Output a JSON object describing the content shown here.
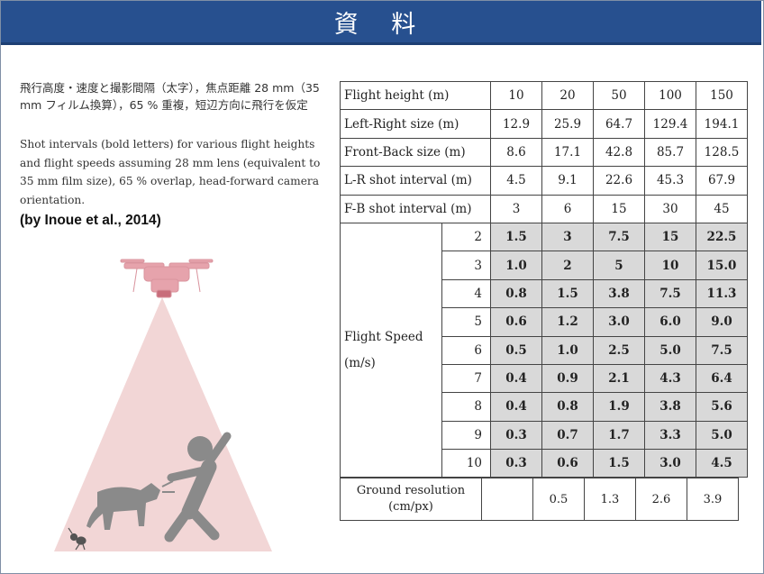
{
  "slide": {
    "title": "資 料",
    "caption_jp": "飛行高度・速度と撮影間隔（太字），焦点距離 28 mm（35 mm フィルム換算），65 % 重複，短辺方向に飛行を仮定",
    "caption_en": "Shot intervals (bold letters) for various flight heights and flight speeds assuming 28 mm lens (equivalent to 35 mm film size), 65 % overlap, head-forward camera orientation.",
    "citation": "(by Inoue et al., 2014)"
  },
  "table": {
    "header_rows": [
      {
        "label": "Flight height (m)",
        "values": [
          "10",
          "20",
          "50",
          "100",
          "150"
        ]
      },
      {
        "label": "Left-Right size (m)",
        "values": [
          "12.9",
          "25.9",
          "64.7",
          "129.4",
          "194.1"
        ]
      },
      {
        "label": "Front-Back size (m)",
        "values": [
          "8.6",
          "17.1",
          "42.8",
          "85.7",
          "128.5"
        ]
      },
      {
        "label": "L-R shot interval (m)",
        "values": [
          "4.5",
          "9.1",
          "22.6",
          "45.3",
          "67.9"
        ]
      },
      {
        "label": "F-B shot interval (m)",
        "values": [
          "3",
          "6",
          "15",
          "30",
          "45"
        ]
      }
    ],
    "speed_label_line1": "Flight Speed",
    "speed_label_line2": "(m/s)",
    "speed_rows": [
      {
        "speed": "2",
        "values": [
          "1.5",
          "3",
          "7.5",
          "15",
          "22.5"
        ]
      },
      {
        "speed": "3",
        "values": [
          "1.0",
          "2",
          "5",
          "10",
          "15.0"
        ]
      },
      {
        "speed": "4",
        "values": [
          "0.8",
          "1.5",
          "3.8",
          "7.5",
          "11.3"
        ]
      },
      {
        "speed": "5",
        "values": [
          "0.6",
          "1.2",
          "3.0",
          "6.0",
          "9.0"
        ]
      },
      {
        "speed": "6",
        "values": [
          "0.5",
          "1.0",
          "2.5",
          "5.0",
          "7.5"
        ]
      },
      {
        "speed": "7",
        "values": [
          "0.4",
          "0.9",
          "2.1",
          "4.3",
          "6.4"
        ]
      },
      {
        "speed": "8",
        "values": [
          "0.4",
          "0.8",
          "1.9",
          "3.8",
          "5.6"
        ]
      },
      {
        "speed": "9",
        "values": [
          "0.3",
          "0.7",
          "1.7",
          "3.3",
          "5.0"
        ]
      },
      {
        "speed": "10",
        "values": [
          "0.3",
          "0.6",
          "1.5",
          "3.0",
          "4.5"
        ]
      }
    ]
  },
  "ground_resolution": {
    "label_line1": "Ground resolution",
    "label_line2": "(cm/px)",
    "values": [
      "",
      "0.5",
      "1.3",
      "2.6",
      "3.9"
    ]
  },
  "colors": {
    "title_bar": "#27508f",
    "shaded_cell": "#d9d9d9",
    "view_cone": "#f2d6d6",
    "drone": "#e9a8b0",
    "silhouette": "#8a8a8a"
  },
  "icons": {
    "drone": "drone-icon",
    "person": "person-falling-icon",
    "dog": "dog-barking-icon",
    "ant": "ant-icon"
  }
}
